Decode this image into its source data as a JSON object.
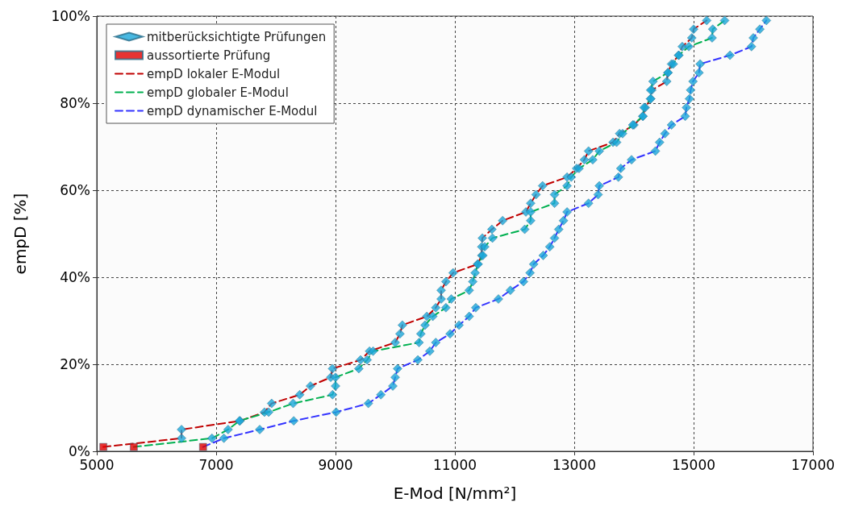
{
  "chart_data": {
    "type": "line",
    "xlabel": "E-Mod [N/mm²]",
    "ylabel": "empD [%]",
    "xlim": [
      5000,
      17000
    ],
    "xticks": [
      5000,
      7000,
      9000,
      11000,
      13000,
      15000,
      17000
    ],
    "ylim": [
      0,
      100
    ],
    "yticks": [
      {
        "value": 0,
        "label": "0%"
      },
      {
        "value": 20,
        "label": "20%"
      },
      {
        "value": 40,
        "label": "40%"
      },
      {
        "value": 60,
        "label": "60%"
      },
      {
        "value": 80,
        "label": "80%"
      },
      {
        "value": 100,
        "label": "100%"
      }
    ],
    "grid": true,
    "legend": "top left",
    "series": [
      {
        "name": "mitberücksichtigte Prüfungen",
        "type": "scatter",
        "marker": "diamond",
        "color": "#1aa6d9",
        "x": [
          6420,
          6420,
          7400,
          7810,
          7930,
          8400,
          8580,
          8920,
          8950,
          9420,
          9570,
          10000,
          10080,
          10120,
          10530,
          10680,
          10770,
          10770,
          10850,
          10970,
          11380,
          11450,
          11450,
          11460,
          11620,
          11800,
          12190,
          12270,
          12360,
          12470,
          12880,
          13040,
          13170,
          13240,
          13650,
          13760,
          14000,
          14150,
          14190,
          14280,
          14300,
          14550,
          14570,
          14630,
          14750,
          14810,
          14970,
          15000,
          15220,
          6930,
          7200,
          7390,
          7880,
          8290,
          8950,
          9000,
          9000,
          9390,
          9530,
          9630,
          10400,
          10430,
          10500,
          10630,
          10850,
          10940,
          11240,
          11300,
          11340,
          11390,
          11470,
          11500,
          11630,
          12170,
          12270,
          12270,
          12670,
          12670,
          12880,
          12950,
          13080,
          13310,
          13420,
          13710,
          13810,
          13980,
          14150,
          14170,
          14280,
          14280,
          14320,
          14570,
          14660,
          14750,
          14920,
          15310,
          15320,
          15520,
          7130,
          7730,
          8300,
          9010,
          9550,
          9760,
          9960,
          10000,
          10040,
          10380,
          10580,
          10680,
          10920,
          11070,
          11240,
          11350,
          11730,
          11930,
          12150,
          12260,
          12320,
          12480,
          12590,
          12670,
          12740,
          12820,
          12880,
          13240,
          13400,
          13420,
          13740,
          13780,
          13960,
          14360,
          14430,
          14520,
          14630,
          14860,
          14880,
          14930,
          14950,
          14990,
          15090,
          15110,
          15610,
          15970,
          16000,
          16110,
          16220
        ],
        "values": [
          3,
          5,
          7,
          9,
          11,
          13,
          15,
          17,
          19,
          21,
          23,
          25,
          27,
          29,
          31,
          33,
          35,
          37,
          39,
          41,
          43,
          45,
          47,
          49,
          51,
          53,
          55,
          57,
          59,
          61,
          63,
          65,
          67,
          69,
          71,
          73,
          75,
          77,
          79,
          81,
          83,
          85,
          87,
          89,
          91,
          93,
          95,
          97,
          99,
          3,
          5,
          7,
          9,
          11,
          13,
          15,
          17,
          19,
          21,
          23,
          25,
          27,
          29,
          31,
          33,
          35,
          37,
          39,
          41,
          43,
          45,
          47,
          49,
          51,
          53,
          55,
          57,
          59,
          61,
          63,
          65,
          67,
          69,
          71,
          73,
          75,
          77,
          79,
          81,
          83,
          85,
          87,
          89,
          91,
          93,
          95,
          97,
          99,
          3,
          5,
          7,
          9,
          11,
          13,
          15,
          17,
          19,
          21,
          23,
          25,
          27,
          29,
          31,
          33,
          35,
          37,
          39,
          41,
          43,
          45,
          47,
          49,
          51,
          53,
          55,
          57,
          59,
          61,
          63,
          65,
          67,
          69,
          71,
          73,
          75,
          77,
          79,
          81,
          83,
          85,
          87,
          89,
          91,
          93,
          95,
          97,
          99
        ]
      },
      {
        "name": "aussortierte Prüfung",
        "type": "scatter",
        "marker": "square",
        "color": "#e00000",
        "x": [
          5110,
          5620,
          6780
        ],
        "values": [
          1,
          1,
          1
        ]
      },
      {
        "name": "empD lokaler E-Modul",
        "marker": "none",
        "line_style": "dashed",
        "color": "#c00000",
        "x": [
          5110,
          6420,
          6420,
          7400,
          7810,
          7930,
          8400,
          8580,
          8920,
          8950,
          9420,
          9570,
          10000,
          10080,
          10120,
          10530,
          10680,
          10770,
          10770,
          10850,
          10970,
          11380,
          11450,
          11450,
          11460,
          11620,
          11800,
          12190,
          12270,
          12360,
          12470,
          12880,
          13040,
          13170,
          13240,
          13650,
          13760,
          14000,
          14150,
          14190,
          14280,
          14300,
          14550,
          14570,
          14630,
          14750,
          14810,
          14970,
          15000,
          15220
        ],
        "values": [
          1,
          3,
          5,
          7,
          9,
          11,
          13,
          15,
          17,
          19,
          21,
          23,
          25,
          27,
          29,
          31,
          33,
          35,
          37,
          39,
          41,
          43,
          45,
          47,
          49,
          51,
          53,
          55,
          57,
          59,
          61,
          63,
          65,
          67,
          69,
          71,
          73,
          75,
          77,
          79,
          81,
          83,
          85,
          87,
          89,
          91,
          93,
          95,
          97,
          99
        ]
      },
      {
        "name": "empD globaler E-Modul",
        "marker": "none",
        "line_style": "dashed",
        "color": "#00b050",
        "x": [
          5620,
          6930,
          7200,
          7390,
          7880,
          8290,
          8950,
          9000,
          9000,
          9390,
          9530,
          9630,
          10400,
          10430,
          10500,
          10630,
          10850,
          10940,
          11240,
          11300,
          11340,
          11390,
          11470,
          11500,
          11630,
          12170,
          12270,
          12270,
          12670,
          12670,
          12880,
          12950,
          13080,
          13310,
          13420,
          13710,
          13810,
          13980,
          14150,
          14170,
          14280,
          14280,
          14320,
          14570,
          14660,
          14750,
          14920,
          15310,
          15320,
          15520
        ],
        "values": [
          1,
          3,
          5,
          7,
          9,
          11,
          13,
          15,
          17,
          19,
          21,
          23,
          25,
          27,
          29,
          31,
          33,
          35,
          37,
          39,
          41,
          43,
          45,
          47,
          49,
          51,
          53,
          55,
          57,
          59,
          61,
          63,
          65,
          67,
          69,
          71,
          73,
          75,
          77,
          79,
          81,
          83,
          85,
          87,
          89,
          91,
          93,
          95,
          97,
          99
        ]
      },
      {
        "name": "empD dynamischer E-Modul",
        "marker": "none",
        "line_style": "dashed",
        "color": "#3333ff",
        "x": [
          6780,
          7130,
          7730,
          8300,
          9010,
          9550,
          9760,
          9960,
          10000,
          10040,
          10380,
          10580,
          10680,
          10920,
          11070,
          11240,
          11350,
          11730,
          11930,
          12150,
          12260,
          12320,
          12480,
          12590,
          12670,
          12740,
          12820,
          12880,
          13240,
          13400,
          13420,
          13740,
          13780,
          13960,
          14360,
          14430,
          14520,
          14630,
          14860,
          14880,
          14930,
          14950,
          14990,
          15090,
          15110,
          15610,
          15970,
          16000,
          16110,
          16220
        ],
        "values": [
          1,
          3,
          5,
          7,
          9,
          11,
          13,
          15,
          17,
          19,
          21,
          23,
          25,
          27,
          29,
          31,
          33,
          35,
          37,
          39,
          41,
          43,
          45,
          47,
          49,
          51,
          53,
          55,
          57,
          59,
          61,
          63,
          65,
          67,
          69,
          71,
          73,
          75,
          77,
          79,
          81,
          83,
          85,
          87,
          89,
          91,
          93,
          95,
          97,
          99
        ]
      }
    ]
  }
}
